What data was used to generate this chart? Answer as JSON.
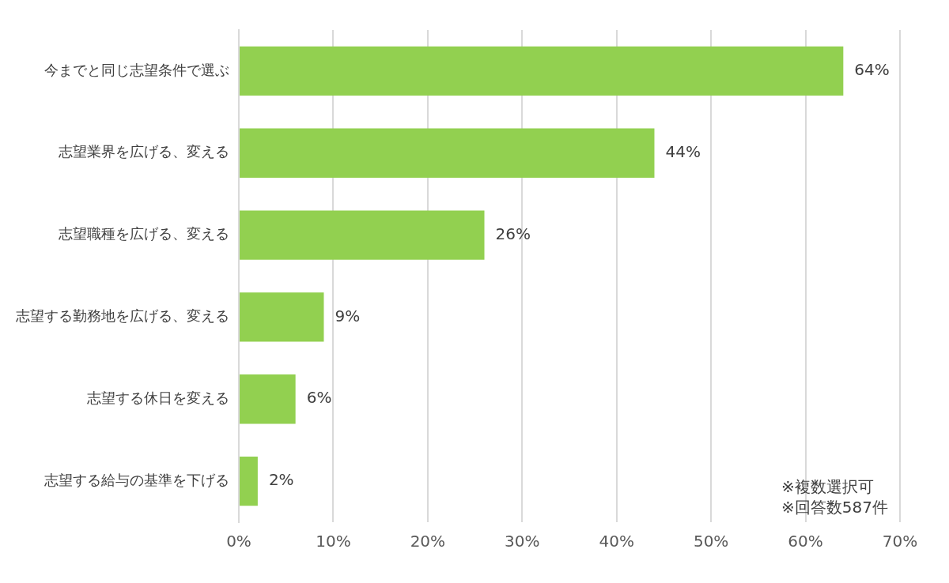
{
  "chart_data": {
    "type": "bar",
    "orientation": "horizontal",
    "categories": [
      "今までと同じ志望条件で選ぶ",
      "志望業界を広げる、変える",
      "志望職種を広げる、変える",
      "志望する勤務地を広げる、変える",
      "志望する休日を変える",
      "志望する給与の基準を下げる"
    ],
    "values": [
      64,
      44,
      26,
      9,
      6,
      2
    ],
    "value_labels": [
      "64%",
      "44%",
      "26%",
      "9%",
      "6%",
      "2%"
    ],
    "color": "#92d050",
    "xlim": [
      0,
      70
    ],
    "xticks": [
      {
        "value": 0,
        "label": "0%"
      },
      {
        "value": 10,
        "label": "10%"
      },
      {
        "value": 20,
        "label": "20%"
      },
      {
        "value": 30,
        "label": "30%"
      },
      {
        "value": 40,
        "label": "40%"
      },
      {
        "value": 50,
        "label": "50%"
      },
      {
        "value": 60,
        "label": "60%"
      },
      {
        "value": 70,
        "label": "70%"
      }
    ],
    "grid": "x",
    "annotations": [
      "※複数選択可",
      "※回答数587件"
    ]
  }
}
